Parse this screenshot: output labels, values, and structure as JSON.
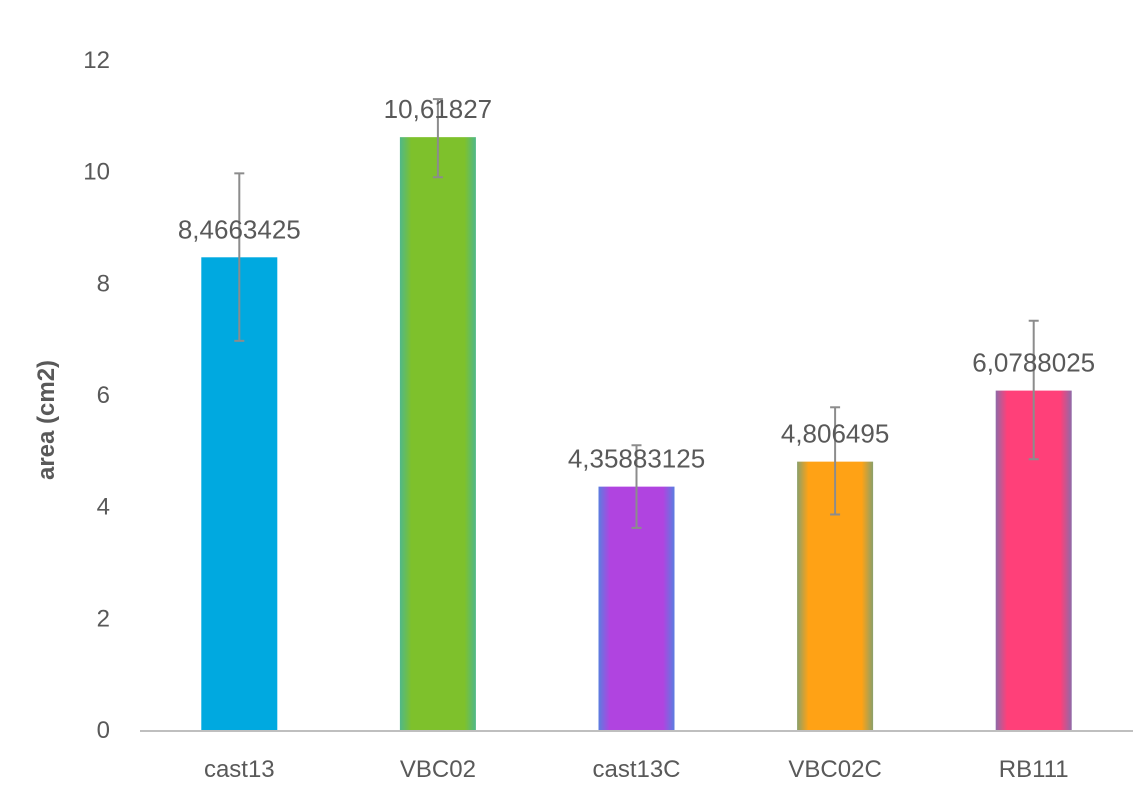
{
  "chart_data": {
    "type": "bar",
    "title": "",
    "xlabel": "",
    "ylabel": "area (cm2)",
    "ylim": [
      0,
      12
    ],
    "yticks": [
      0,
      2,
      4,
      6,
      8,
      10,
      12
    ],
    "grid": false,
    "legend": "none",
    "categories": [
      "cast13",
      "VBC02",
      "cast13C",
      "VBC02C",
      "RB111"
    ],
    "values": [
      8.4663425,
      10.61827,
      4.35883125,
      4.806495,
      6.0788025
    ],
    "data_labels": [
      "8,4663425",
      "10,61827",
      "4,35883125",
      "4,806495",
      "6,0788025"
    ],
    "error_bars": [
      {
        "low": 6.97,
        "high": 9.97
      },
      {
        "low": 9.9,
        "high": 11.3
      },
      {
        "low": 3.62,
        "high": 5.1
      },
      {
        "low": 3.86,
        "high": 5.78
      },
      {
        "low": 4.85,
        "high": 7.33
      }
    ],
    "colors": [
      "#00a9e0",
      "#7ec12c",
      "#b044e0",
      "#ffa215",
      "#ff4079"
    ],
    "edge_colors": [
      "#00a9e0",
      "#4fb889",
      "#5b7de0",
      "#8aa06a",
      "#8e6aa8"
    ],
    "axis_color": "#bfbfbf",
    "text_color": "#595959",
    "error_bar_color": "#8c8c8c"
  }
}
